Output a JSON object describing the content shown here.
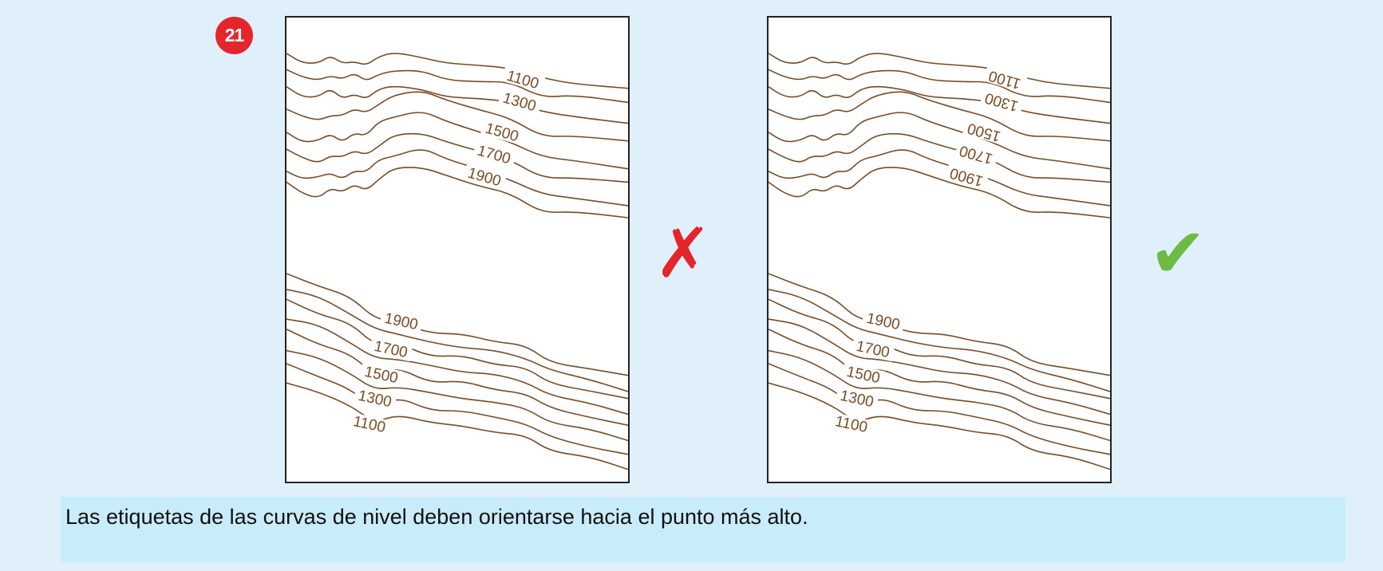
{
  "badge": "21",
  "contour_color": "#7a4a22",
  "panels": [
    {
      "id": "wrong",
      "verdict": "incorrect",
      "verdict_icon": "cross-icon",
      "verdict_color": "#e3262b",
      "top_labels": [
        "1100",
        "1300",
        "1500",
        "1700",
        "1900"
      ],
      "bottom_labels": [
        "1900",
        "1700",
        "1500",
        "1300",
        "1100"
      ],
      "top_labels_rotated_180": false
    },
    {
      "id": "right",
      "verdict": "correct",
      "verdict_icon": "check-icon",
      "verdict_color": "#6dbb45",
      "top_labels": [
        "1100",
        "1300",
        "1500",
        "1700",
        "1900"
      ],
      "bottom_labels": [
        "1900",
        "1700",
        "1500",
        "1300",
        "1100"
      ],
      "top_labels_rotated_180": true
    }
  ],
  "marks": {
    "wrong": "✗",
    "right": "✔"
  },
  "caption": "Las etiquetas de las curvas de nivel deben orientarse hacia el punto más alto."
}
